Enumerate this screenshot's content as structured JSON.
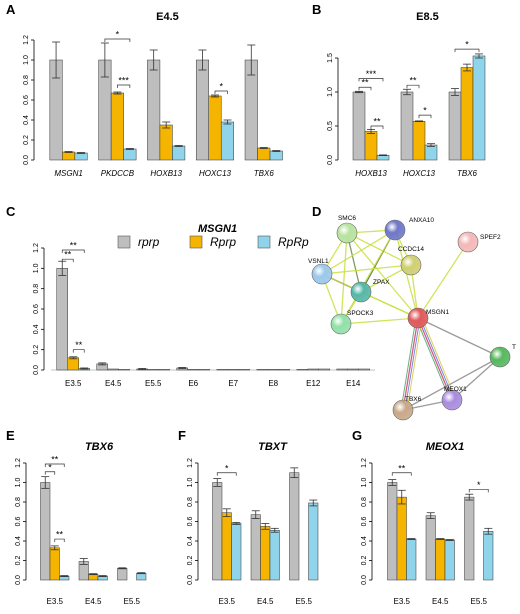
{
  "colors": {
    "rprp": "#bebebe",
    "Rprp": "#f5b400",
    "RpRp": "#8fd4ea"
  },
  "legend": {
    "items": [
      {
        "label": "rprp",
        "color_key": "rprp"
      },
      {
        "label": "Rprp",
        "color_key": "Rprp"
      },
      {
        "label": "RpRp",
        "color_key": "RpRp"
      }
    ]
  },
  "chart_data": [
    {
      "panel": "A",
      "type": "bar",
      "title": "E4.5",
      "italic_categories": true,
      "categories": [
        "MSGN1",
        "PKDCCB",
        "HOXB13",
        "HOXC13",
        "TBX6"
      ],
      "ylim": [
        0,
        1.2
      ],
      "yticks": [
        "0.0",
        "0.2",
        "0.4",
        "0.6",
        "0.8",
        "1.0",
        "1.2"
      ],
      "series": [
        {
          "key": "rprp",
          "values": [
            1.0,
            1.0,
            1.0,
            1.0,
            1.0
          ],
          "errors": [
            0.18,
            0.17,
            0.1,
            0.1,
            0.15
          ]
        },
        {
          "key": "Rprp",
          "values": [
            0.08,
            0.67,
            0.35,
            0.64,
            0.12
          ],
          "errors": [
            0.005,
            0.01,
            0.03,
            0.01,
            0.005
          ]
        },
        {
          "key": "RpRp",
          "values": [
            0.07,
            0.11,
            0.14,
            0.38,
            0.09
          ],
          "errors": [
            0.005,
            0.005,
            0.005,
            0.02,
            0.005
          ]
        }
      ],
      "significance": [
        {
          "cat": 1,
          "from": "rprp",
          "to": "RpRp",
          "label": "*",
          "y": 1.21
        },
        {
          "cat": 1,
          "from": "Rprp",
          "to": "RpRp",
          "label": "***",
          "y": 0.75
        },
        {
          "cat": 3,
          "from": "Rprp",
          "to": "RpRp",
          "label": "*",
          "y": 0.69
        }
      ]
    },
    {
      "panel": "B",
      "type": "bar",
      "title": "E8.5",
      "italic_categories": true,
      "categories": [
        "HOXB13",
        "HOXC13",
        "TBX6"
      ],
      "ylim": [
        0,
        1.5
      ],
      "yticks": [
        "0.0",
        "0.5",
        "1.0",
        "1.5"
      ],
      "series": [
        {
          "key": "rprp",
          "values": [
            1.0,
            1.0,
            1.0
          ],
          "errors": [
            0.01,
            0.04,
            0.05
          ]
        },
        {
          "key": "Rprp",
          "values": [
            0.42,
            0.57,
            1.36
          ],
          "errors": [
            0.03,
            0.005,
            0.05
          ]
        },
        {
          "key": "RpRp",
          "values": [
            0.07,
            0.22,
            1.53
          ],
          "errors": [
            0.005,
            0.02,
            0.03
          ]
        }
      ],
      "significance": [
        {
          "cat": 0,
          "from": "rprp",
          "to": "RpRp",
          "label": "***",
          "y": 1.2
        },
        {
          "cat": 0,
          "from": "rprp",
          "to": "Rprp",
          "label": "**",
          "y": 1.07
        },
        {
          "cat": 0,
          "from": "Rprp",
          "to": "RpRp",
          "label": "**",
          "y": 0.5
        },
        {
          "cat": 1,
          "from": "rprp",
          "to": "Rprp",
          "label": "**",
          "y": 1.1
        },
        {
          "cat": 1,
          "from": "Rprp",
          "to": "RpRp",
          "label": "*",
          "y": 0.66
        },
        {
          "cat": 2,
          "from": "rprp",
          "to": "RpRp",
          "label": "*",
          "y": 1.63
        }
      ]
    },
    {
      "panel": "C",
      "type": "bar",
      "title": "MSGN1",
      "categories": [
        "E3.5",
        "E4.5",
        "E5.5",
        "E6",
        "E7",
        "E8",
        "E12",
        "E14"
      ],
      "ylim": [
        0,
        1.2
      ],
      "yticks": [
        "0.0",
        "0.2",
        "0.4",
        "0.6",
        "0.8",
        "1.0",
        "1.2"
      ],
      "series": [
        {
          "key": "rprp",
          "values": [
            1.0,
            0.06,
            0.01,
            0.02,
            0.005,
            0.005,
            0.005,
            0.01
          ],
          "errors": [
            0.07,
            0.01,
            0.005,
            0.005,
            0.0,
            0.0,
            0.0,
            0.0
          ]
        },
        {
          "key": "Rprp",
          "values": [
            0.12,
            0.01,
            0.005,
            0.005,
            0.005,
            0.005,
            0.01,
            0.01
          ],
          "errors": [
            0.01,
            0.0,
            0.0,
            0.0,
            0.0,
            0.0,
            0.0,
            0.0
          ]
        },
        {
          "key": "RpRp",
          "values": [
            0.015,
            0.005,
            0.005,
            0.005,
            0.005,
            0.005,
            0.01,
            0.01
          ],
          "errors": [
            0.005,
            0.0,
            0.0,
            0.0,
            0.0,
            0.0,
            0.0,
            0.0
          ]
        }
      ],
      "significance": [
        {
          "cat": 0,
          "from": "rprp",
          "to": "RpRp",
          "label": "**",
          "y": 1.18
        },
        {
          "cat": 0,
          "from": "rprp",
          "to": "Rprp",
          "label": "**",
          "y": 1.09
        },
        {
          "cat": 0,
          "from": "Rprp",
          "to": "RpRp",
          "label": "**",
          "y": 0.2
        }
      ]
    },
    {
      "panel": "E",
      "type": "bar",
      "title": "TBX6",
      "categories": [
        "E3.5",
        "E4.5",
        "E5.5"
      ],
      "ylim": [
        0,
        1.2
      ],
      "yticks": [
        "0.0",
        "0.2",
        "0.4",
        "0.6",
        "0.8",
        "1.0",
        "1.2"
      ],
      "series": [
        {
          "key": "rprp",
          "values": [
            1.0,
            0.19,
            0.12
          ],
          "errors": [
            0.06,
            0.03,
            0.005
          ]
        },
        {
          "key": "Rprp",
          "values": [
            0.33,
            0.06,
            0.0
          ],
          "errors": [
            0.02,
            0.005,
            0.0
          ]
        },
        {
          "key": "RpRp",
          "values": [
            0.04,
            0.04,
            0.07
          ],
          "errors": [
            0.005,
            0.005,
            0.005
          ]
        }
      ],
      "significance": [
        {
          "cat": 0,
          "from": "rprp",
          "to": "RpRp",
          "label": "**",
          "y": 1.19
        },
        {
          "cat": 0,
          "from": "rprp",
          "to": "Rprp",
          "label": "*",
          "y": 1.11
        },
        {
          "cat": 0,
          "from": "Rprp",
          "to": "RpRp",
          "label": "**",
          "y": 0.42
        }
      ]
    },
    {
      "panel": "F",
      "type": "bar",
      "title": "TBXT",
      "categories": [
        "E3.5",
        "E4.5",
        "E5.5"
      ],
      "ylim": [
        0,
        1.2
      ],
      "yticks": [
        "0.0",
        "0.2",
        "0.4",
        "0.6",
        "0.8",
        "1.0",
        "1.2"
      ],
      "series": [
        {
          "key": "rprp",
          "values": [
            1.0,
            0.67,
            1.1
          ],
          "errors": [
            0.04,
            0.04,
            0.05
          ]
        },
        {
          "key": "Rprp",
          "values": [
            0.69,
            0.55,
            0.0
          ],
          "errors": [
            0.04,
            0.03,
            0.0
          ]
        },
        {
          "key": "RpRp",
          "values": [
            0.58,
            0.51,
            0.79
          ],
          "errors": [
            0.01,
            0.02,
            0.03
          ]
        }
      ],
      "significance": [
        {
          "cat": 0,
          "from": "rprp",
          "to": "RpRp",
          "label": "*",
          "y": 1.1
        }
      ]
    },
    {
      "panel": "G",
      "type": "bar",
      "title": "MEOX1",
      "categories": [
        "E3.5",
        "E4.5",
        "E5.5"
      ],
      "ylim": [
        0,
        1.2
      ],
      "yticks": [
        "0.0",
        "0.2",
        "0.4",
        "0.6",
        "0.8",
        "1.0",
        "1.2"
      ],
      "series": [
        {
          "key": "rprp",
          "values": [
            1.0,
            0.66,
            0.85
          ],
          "errors": [
            0.03,
            0.03,
            0.03
          ]
        },
        {
          "key": "Rprp",
          "values": [
            0.85,
            0.42,
            0.0
          ],
          "errors": [
            0.07,
            0.005,
            0.0
          ]
        },
        {
          "key": "RpRp",
          "values": [
            0.42,
            0.41,
            0.5
          ],
          "errors": [
            0.005,
            0.005,
            0.03
          ]
        }
      ],
      "significance": [
        {
          "cat": 0,
          "from": "rprp",
          "to": "RpRp",
          "label": "**",
          "y": 1.1
        },
        {
          "cat": 2,
          "from": "rprp",
          "to": "RpRp",
          "label": "*",
          "y": 0.93
        }
      ]
    }
  ],
  "network": {
    "panel": "D",
    "nodes": [
      {
        "label": "SMC6",
        "color": "#b8e3a0"
      },
      {
        "label": "ANXA10",
        "color": "#6f78c8"
      },
      {
        "label": "SPEF2",
        "color": "#f4b8b8"
      },
      {
        "label": "CCDC14",
        "color": "#cfcf73"
      },
      {
        "label": "VSNL1",
        "color": "#9cc8ec"
      },
      {
        "label": "ZPAX",
        "color": "#56b8a8"
      },
      {
        "label": "SPOCK3",
        "color": "#92e0a8"
      },
      {
        "label": "MSGN1",
        "color": "#e05a5a"
      },
      {
        "label": "T",
        "color": "#58b860"
      },
      {
        "label": "MEOX1",
        "color": "#a98ce0"
      },
      {
        "label": "TBX6",
        "color": "#c8a888"
      }
    ]
  }
}
